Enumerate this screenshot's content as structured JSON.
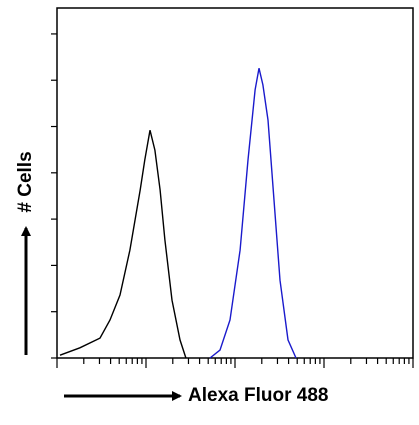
{
  "chart_data": {
    "type": "line",
    "x_label": "Alexa Fluor 488",
    "y_label": "# Cells",
    "xscale": "log",
    "xlim": [
      1,
      10000
    ],
    "xticks": [
      1,
      2,
      3,
      4,
      5,
      6,
      7,
      8,
      9,
      10,
      20,
      30,
      40,
      50,
      60,
      70,
      80,
      90,
      100,
      200,
      300,
      400,
      500,
      600,
      700,
      800,
      900,
      1000,
      2000,
      3000,
      4000,
      5000,
      6000,
      7000,
      8000,
      9000,
      10000
    ],
    "ylim": [
      0,
      7.56
    ],
    "yticks": [
      0,
      1,
      2,
      3,
      4,
      5,
      6,
      7
    ],
    "series": [
      {
        "color": "#000000",
        "x": [
          1.08,
          1.81,
          3.04,
          3.94,
          5.1,
          6.6,
          8.6,
          9.7,
          11.1,
          12.6,
          14.4,
          16.3,
          19.6,
          24.1,
          28.1
        ],
        "values": [
          0.06,
          0.22,
          0.43,
          0.82,
          1.36,
          2.33,
          3.63,
          4.28,
          4.92,
          4.49,
          3.63,
          2.55,
          1.25,
          0.39,
          0
        ]
      },
      {
        "color": "#1a1acc",
        "x": [
          52.4,
          67.8,
          87.9,
          114,
          140,
          168,
          186,
          206,
          235,
          274,
          320,
          394,
          484
        ],
        "values": [
          0,
          0.17,
          0.82,
          2.33,
          4.28,
          5.79,
          6.26,
          5.9,
          5.14,
          3.41,
          1.68,
          0.39,
          0
        ]
      }
    ]
  }
}
